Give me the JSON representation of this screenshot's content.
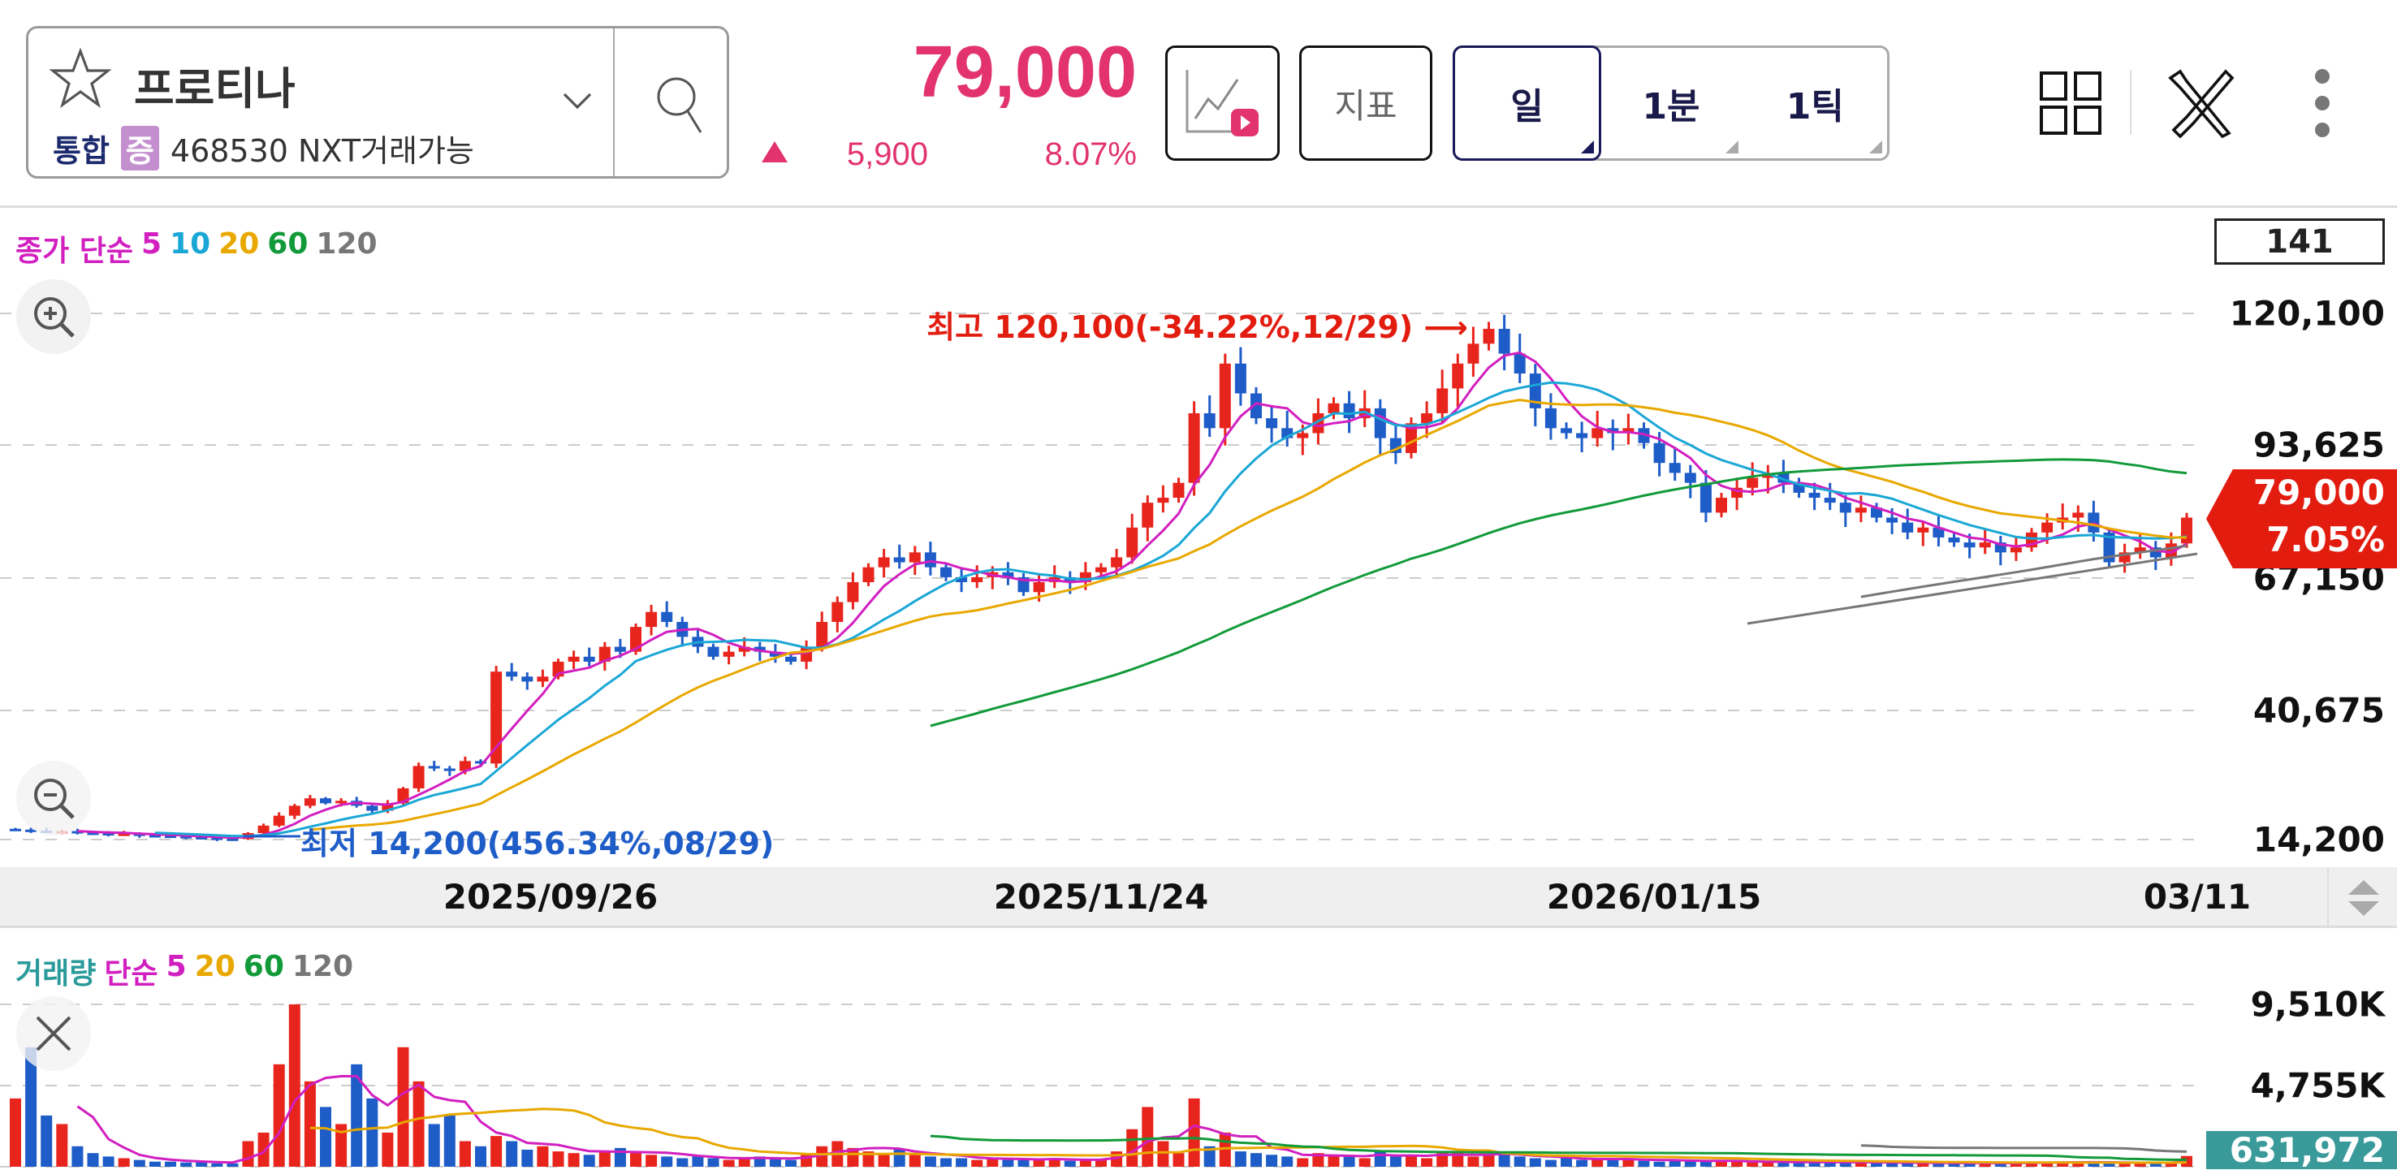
{
  "header": {
    "stock_name": "프로티나",
    "market": "통합",
    "badge": "증",
    "code_info": "468530 NXT거래가능",
    "price": "79,000",
    "change": "5,900",
    "change_pct": "8.07%",
    "up_arrow": "▲",
    "indicator_button": "지표",
    "periods": [
      {
        "label": "일",
        "selected": true
      },
      {
        "label": "1분",
        "selected": false
      },
      {
        "label": "1틱",
        "selected": false
      }
    ],
    "icons": [
      "star-icon",
      "chevron-down-icon",
      "search-icon",
      "chart-video-icon",
      "grid-layout-icon",
      "tools-icon",
      "more-vertical-icon"
    ]
  },
  "price_chart": {
    "legend": {
      "title": "종가 단순",
      "periods": [
        "5",
        "10",
        "20",
        "60",
        "120"
      ],
      "colors": [
        "#d21fc0",
        "#1aa7d6",
        "#e8a800",
        "#129a3a",
        "#777777"
      ]
    },
    "candle_count": "141",
    "axis_labels": [
      "120,100",
      "93,625",
      "67,150",
      "40,675",
      "14,200"
    ],
    "axis_values": [
      120100,
      93625,
      67150,
      40675,
      14200
    ],
    "current_tag": {
      "price": "79,000",
      "pct": "7.05%"
    },
    "max_note": "최고 120,100(-34.22%,12/29) ⟶",
    "min_note": "최저 14,200(456.34%,08/29)",
    "up_color": "#e8251c",
    "down_color": "#1e5cc8",
    "closes": [
      16200,
      16000,
      15800,
      15900,
      15600,
      15500,
      15300,
      15400,
      15100,
      15000,
      14900,
      14700,
      14600,
      14400,
      14300,
      15500,
      17000,
      19000,
      21000,
      22500,
      21500,
      22000,
      21000,
      20000,
      21500,
      24500,
      29000,
      28500,
      28000,
      30000,
      29500,
      48000,
      47000,
      46000,
      47000,
      50000,
      51000,
      50000,
      53000,
      52000,
      57000,
      60000,
      58000,
      55000,
      53000,
      51000,
      52000,
      53000,
      52000,
      51000,
      50000,
      53000,
      58000,
      62000,
      66000,
      69000,
      71000,
      70000,
      72000,
      69000,
      67000,
      66000,
      67000,
      68000,
      67000,
      64000,
      66000,
      67000,
      66000,
      68000,
      69000,
      71000,
      77000,
      82000,
      83000,
      86000,
      100000,
      97000,
      110000,
      104000,
      99000,
      97000,
      95000,
      96000,
      100000,
      102000,
      99000,
      101000,
      95000,
      92000,
      98000,
      100000,
      105000,
      110000,
      114000,
      117000,
      112000,
      108000,
      101000,
      97000,
      96000,
      95000,
      97000,
      96000,
      97000,
      94000,
      90000,
      88000,
      86000,
      80000,
      83000,
      85000,
      87000,
      88000,
      86000,
      84000,
      83000,
      82000,
      80000,
      81000,
      79000,
      78000,
      76000,
      77000,
      75000,
      74000,
      73000,
      74000,
      72000,
      73000,
      76000,
      78000,
      79000,
      80000,
      76000,
      70000,
      72000,
      73000,
      71000,
      73800,
      79000
    ]
  },
  "date_axis": [
    "2025/09/26",
    "2025/11/24",
    "2026/01/15",
    "03/11"
  ],
  "volume_chart": {
    "legend": {
      "title": "거래량",
      "method": "단순",
      "periods": [
        "5",
        "20",
        "60",
        "120"
      ],
      "colors": [
        "#d21fc0",
        "#e8a800",
        "#129a3a",
        "#777777"
      ],
      "title_color": "#2a9a9a"
    },
    "axis_labels": [
      "9,510K",
      "4,755K"
    ],
    "current_tag": "631,972",
    "volumes_k": [
      4000,
      7000,
      3000,
      2500,
      1200,
      800,
      600,
      500,
      400,
      300,
      300,
      250,
      300,
      200,
      200,
      1500,
      2000,
      6000,
      9510,
      5000,
      3500,
      2500,
      6000,
      4000,
      2000,
      7000,
      5000,
      2500,
      3000,
      1500,
      1200,
      1800,
      1500,
      1000,
      1200,
      900,
      800,
      700,
      900,
      1100,
      800,
      700,
      600,
      500,
      600,
      500,
      400,
      500,
      600,
      500,
      400,
      700,
      1200,
      1500,
      1100,
      900,
      800,
      1000,
      700,
      600,
      500,
      500,
      400,
      450,
      500,
      400,
      400,
      500,
      350,
      400,
      450,
      900,
      2200,
      3500,
      1500,
      800,
      4000,
      1200,
      2000,
      900,
      800,
      700,
      600,
      500,
      800,
      700,
      600,
      500,
      900,
      600,
      700,
      500,
      800,
      900,
      600,
      700,
      800,
      600,
      500,
      400,
      500,
      400,
      450,
      500,
      400,
      350,
      300,
      400,
      350,
      300,
      350,
      300,
      250,
      300,
      250,
      280,
      300,
      260,
      250,
      240,
      260,
      230,
      220,
      240,
      200,
      210,
      220,
      230,
      200,
      210,
      250,
      300,
      280,
      260,
      240,
      230,
      220,
      250,
      260,
      230,
      632
    ]
  }
}
